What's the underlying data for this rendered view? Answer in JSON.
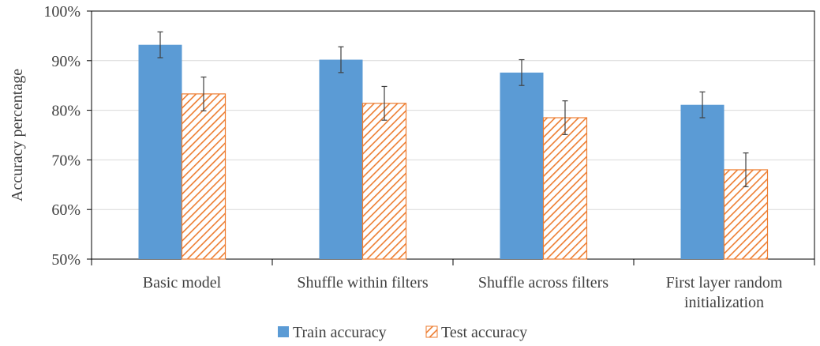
{
  "chart_data": {
    "type": "bar",
    "title": "",
    "xlabel": "",
    "ylabel": "Accuracy percentage",
    "ylim": [
      50,
      100
    ],
    "y_ticks": [
      "50%",
      "60%",
      "70%",
      "80%",
      "90%",
      "100%"
    ],
    "y_tick_values": [
      50,
      60,
      70,
      80,
      90,
      100
    ],
    "grid": true,
    "legend_position": "bottom",
    "categories": [
      [
        "Basic model"
      ],
      [
        "Shuffle within filters"
      ],
      [
        "Shuffle across filters"
      ],
      [
        "First layer random",
        "initialization"
      ]
    ],
    "series": [
      {
        "name": "Train accuracy",
        "values": [
          93.2,
          90.2,
          87.6,
          81.1
        ],
        "error": [
          2.6,
          2.6,
          2.6,
          2.6
        ],
        "color": "#5B9BD5",
        "pattern": "solid"
      },
      {
        "name": "Test accuracy",
        "values": [
          83.3,
          81.4,
          78.5,
          68.0
        ],
        "error": [
          3.4,
          3.4,
          3.4,
          3.4
        ],
        "color": "#ED7D31",
        "pattern": "diagonal-hatch"
      }
    ]
  }
}
